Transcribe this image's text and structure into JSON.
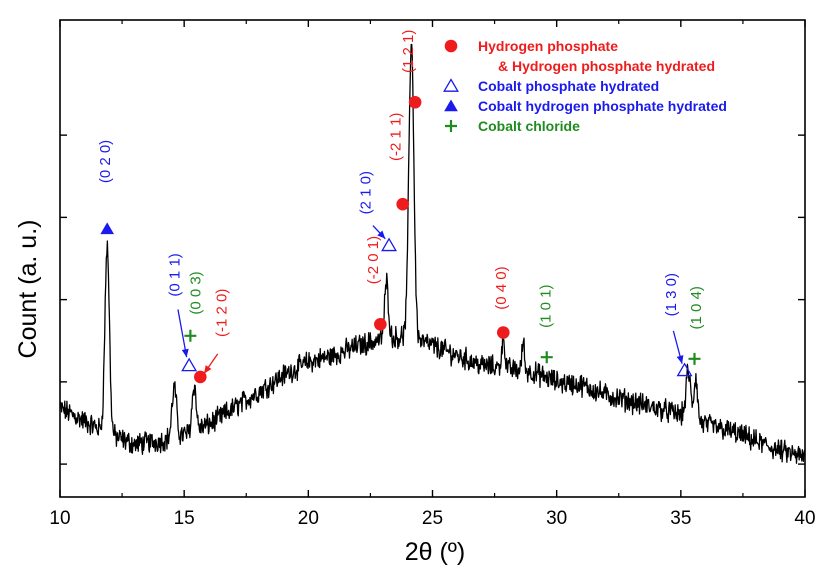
{
  "chart_data": {
    "type": "line",
    "title": "",
    "xlabel": "2θ (º)",
    "ylabel": "Count (a. u.)",
    "xlim": [
      10,
      40
    ],
    "xticks": [
      10,
      15,
      20,
      25,
      30,
      35,
      40
    ],
    "y_tick_labels_shown": false,
    "grid": false,
    "legend_position": "top-right",
    "colors": {
      "red": "#ee1c1c",
      "blue": "#1a1aee",
      "green": "#1f8c1f",
      "line": "#000000"
    },
    "legend": [
      {
        "marker": "filled-circle",
        "color": "red",
        "lines": [
          "Hydrogen phosphate",
          "& Hydrogen phosphate hydrated"
        ]
      },
      {
        "marker": "open-triangle",
        "color": "blue",
        "lines": [
          "Cobalt phosphate hydrated"
        ]
      },
      {
        "marker": "filled-triangle",
        "color": "blue",
        "lines": [
          "Cobalt hydrogen phosphate hydrated"
        ]
      },
      {
        "marker": "plus",
        "color": "green",
        "lines": [
          "Cobalt chloride"
        ]
      }
    ],
    "series": [
      {
        "baseline": [
          [
            10.0,
            0.17
          ],
          [
            11.0,
            0.13
          ],
          [
            12.0,
            0.09
          ],
          [
            13.0,
            0.06
          ],
          [
            14.0,
            0.07
          ],
          [
            15.0,
            0.09
          ],
          [
            16.0,
            0.12
          ],
          [
            17.0,
            0.17
          ],
          [
            18.0,
            0.22
          ],
          [
            19.0,
            0.27
          ],
          [
            20.0,
            0.31
          ],
          [
            21.0,
            0.33
          ],
          [
            22.0,
            0.36
          ],
          [
            23.0,
            0.38
          ],
          [
            24.0,
            0.39
          ],
          [
            25.0,
            0.36
          ],
          [
            26.0,
            0.33
          ],
          [
            27.0,
            0.3
          ],
          [
            28.0,
            0.29
          ],
          [
            29.0,
            0.28
          ],
          [
            30.0,
            0.25
          ],
          [
            31.0,
            0.24
          ],
          [
            32.0,
            0.21
          ],
          [
            33.0,
            0.19
          ],
          [
            34.0,
            0.17
          ],
          [
            35.0,
            0.15
          ],
          [
            36.0,
            0.12
          ],
          [
            37.0,
            0.1
          ],
          [
            38.0,
            0.07
          ],
          [
            39.0,
            0.04
          ],
          [
            40.0,
            0.02
          ]
        ],
        "peaks": [
          {
            "x": 11.9,
            "height": 0.57,
            "width": 0.09
          },
          {
            "x": 14.6,
            "height": 0.15,
            "width": 0.09
          },
          {
            "x": 15.4,
            "height": 0.14,
            "width": 0.08
          },
          {
            "x": 23.15,
            "height": 0.17,
            "width": 0.08
          },
          {
            "x": 24.15,
            "height": 0.9,
            "width": 0.1
          },
          {
            "x": 27.85,
            "height": 0.1,
            "width": 0.06
          },
          {
            "x": 28.65,
            "height": 0.09,
            "width": 0.05
          },
          {
            "x": 35.3,
            "height": 0.14,
            "width": 0.09
          },
          {
            "x": 35.6,
            "height": 0.13,
            "width": 0.07
          }
        ]
      }
    ],
    "annotations": [
      {
        "marker": "filled-triangle",
        "color": "blue",
        "x": 11.9,
        "y": 0.715
      },
      {
        "label": "(0 2 0)",
        "color": "blue",
        "x": 11.85,
        "y": 0.92
      },
      {
        "marker": "open-triangle",
        "color": "blue",
        "x": 15.2,
        "y": 0.3
      },
      {
        "marker": "plus",
        "color": "green",
        "x": 15.25,
        "y": 0.39
      },
      {
        "marker": "filled-circle",
        "color": "red",
        "x": 15.65,
        "y": 0.265
      },
      {
        "label": "(0 1 1)",
        "color": "blue",
        "x": 14.65,
        "y": 0.575
      },
      {
        "label": "(0 0 3)",
        "color": "green",
        "x": 15.5,
        "y": 0.52
      },
      {
        "label": "(-1 2 0)",
        "color": "red",
        "x": 16.55,
        "y": 0.46
      },
      {
        "marker": "filled-circle",
        "color": "red",
        "x": 22.9,
        "y": 0.425
      },
      {
        "marker": "open-triangle",
        "color": "blue",
        "x": 23.25,
        "y": 0.665
      },
      {
        "marker": "filled-circle",
        "color": "red",
        "x": 23.8,
        "y": 0.79
      },
      {
        "marker": "filled-circle",
        "color": "red",
        "x": 24.3,
        "y": 1.1
      },
      {
        "label": "(-2 0 1)",
        "color": "red",
        "x": 22.65,
        "y": 0.62
      },
      {
        "label": "(2 1 0)",
        "color": "blue",
        "x": 22.35,
        "y": 0.825
      },
      {
        "label": "(-2 1 1)",
        "color": "red",
        "x": 23.55,
        "y": 0.995
      },
      {
        "label": "(1 2 1)",
        "color": "red",
        "x": 24.05,
        "y": 1.255
      },
      {
        "marker": "filled-circle",
        "color": "red",
        "x": 27.85,
        "y": 0.4
      },
      {
        "label": "(0 4 0)",
        "color": "red",
        "x": 27.8,
        "y": 0.535
      },
      {
        "marker": "plus",
        "color": "green",
        "x": 29.6,
        "y": 0.325
      },
      {
        "label": "(1 0 1)",
        "color": "green",
        "x": 29.6,
        "y": 0.48
      },
      {
        "marker": "open-triangle",
        "color": "blue",
        "x": 35.15,
        "y": 0.285
      },
      {
        "marker": "plus",
        "color": "green",
        "x": 35.55,
        "y": 0.32
      },
      {
        "label": "(1 3 0)",
        "color": "blue",
        "x": 34.65,
        "y": 0.515
      },
      {
        "label": "(1 0 4)",
        "color": "green",
        "x": 35.65,
        "y": 0.475
      }
    ],
    "arrows": [
      {
        "color": "blue",
        "from": [
          14.75,
          0.47
        ],
        "to": [
          15.1,
          0.325
        ]
      },
      {
        "color": "red",
        "from": [
          16.35,
          0.335
        ],
        "to": [
          15.8,
          0.275
        ]
      },
      {
        "color": "blue",
        "from": [
          22.6,
          0.725
        ],
        "to": [
          23.1,
          0.685
        ]
      },
      {
        "color": "blue",
        "from": [
          34.7,
          0.405
        ],
        "to": [
          35.05,
          0.305
        ]
      }
    ]
  }
}
